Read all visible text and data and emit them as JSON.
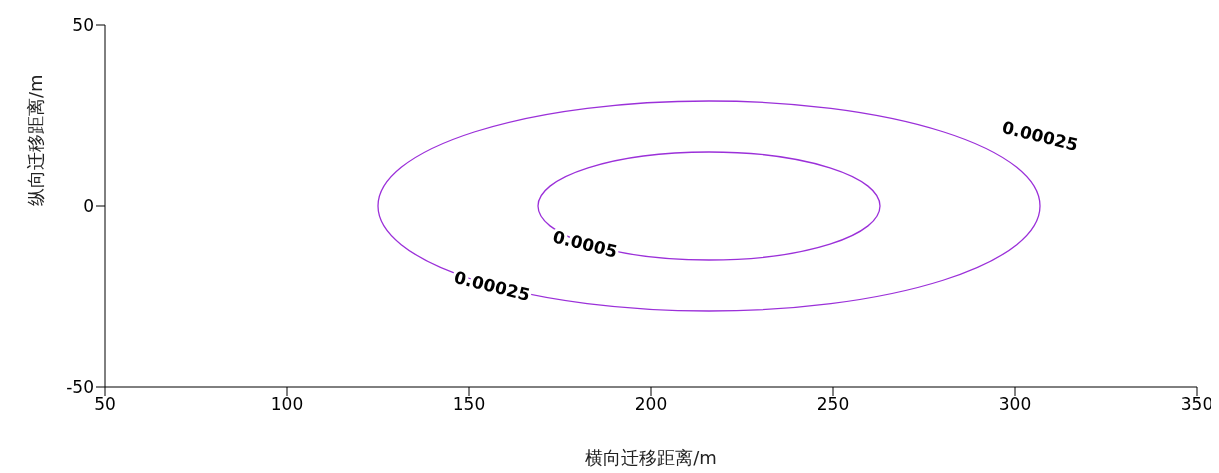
{
  "chart_data": {
    "type": "line",
    "xlabel": "横向迁移距离/m",
    "ylabel": "纵向迁移距离/m",
    "xlim": [
      50,
      350
    ],
    "xticks": [
      50,
      100,
      150,
      200,
      250,
      300,
      350
    ],
    "ylim": [
      -50,
      50
    ],
    "yticks": [
      -50,
      0,
      50
    ],
    "annotations": [
      "0.00025",
      "0.0005",
      "0.00025"
    ]
  }
}
